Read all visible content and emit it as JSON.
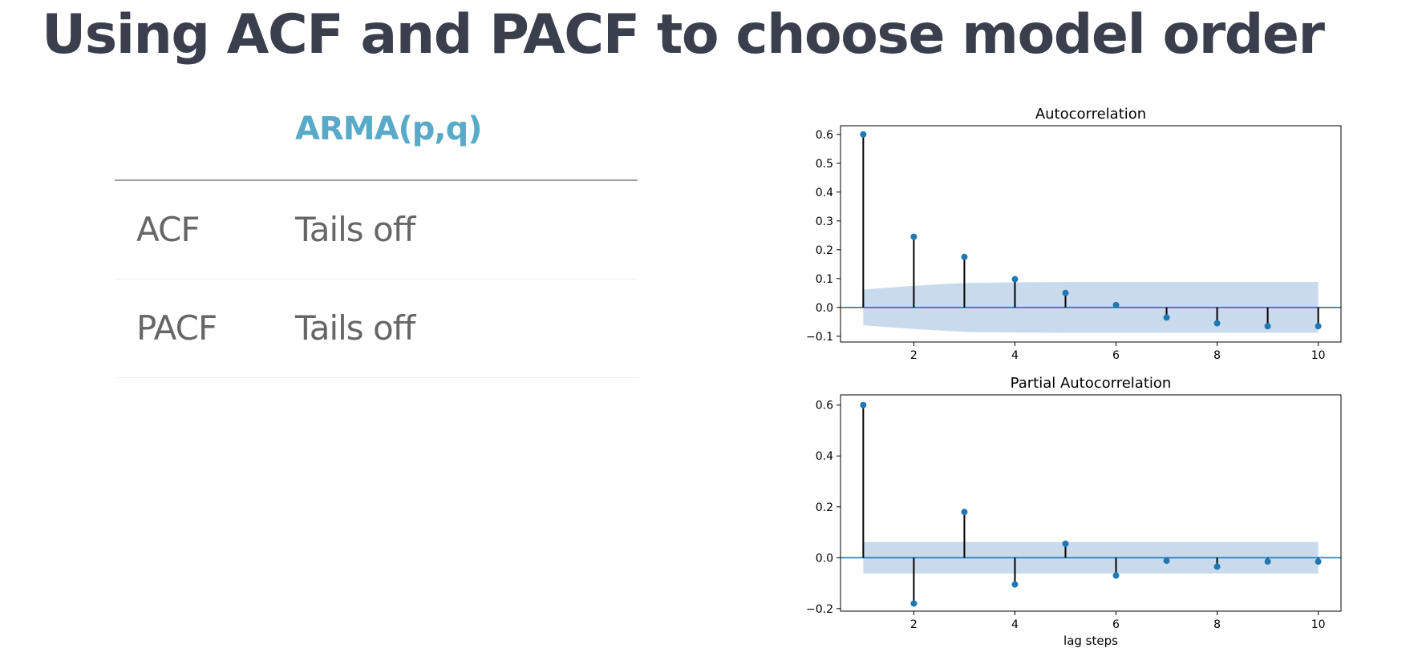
{
  "slide": {
    "title": "Using ACF and PACF to choose model order"
  },
  "table": {
    "header": "ARMA(p,q)",
    "rows": [
      {
        "label": "ACF",
        "value": "Tails off"
      },
      {
        "label": "PACF",
        "value": "Tails off"
      }
    ]
  },
  "colors": {
    "title": "#3b3f4d",
    "header_accent": "#59a9c8",
    "body_text": "#666666",
    "marker": "#1f77b4",
    "stem": "#000000",
    "confidence_band": "#b0cbe2",
    "zero_line": "#1f77b4"
  },
  "chart_data": [
    {
      "type": "stem",
      "title": "Autocorrelation",
      "xlabel": "",
      "ylabel": "",
      "x": [
        1,
        2,
        3,
        4,
        5,
        6,
        7,
        8,
        9,
        10
      ],
      "values": [
        0.6,
        0.245,
        0.175,
        0.098,
        0.05,
        0.008,
        -0.035,
        -0.055,
        -0.065,
        -0.065
      ],
      "confidence_band": {
        "x": [
          1,
          2,
          3,
          4,
          5,
          6,
          7,
          8,
          9,
          10
        ],
        "upper": [
          0.062,
          0.075,
          0.085,
          0.087,
          0.088,
          0.088,
          0.088,
          0.088,
          0.088,
          0.088
        ],
        "lower": [
          -0.062,
          -0.075,
          -0.085,
          -0.087,
          -0.088,
          -0.088,
          -0.088,
          -0.088,
          -0.088,
          -0.088
        ]
      },
      "xlim": [
        0.55,
        10.45
      ],
      "ylim": [
        -0.12,
        0.63
      ],
      "xticks": [
        2,
        4,
        6,
        8,
        10
      ],
      "yticks": [
        -0.1,
        0.0,
        0.1,
        0.2,
        0.3,
        0.4,
        0.5,
        0.6
      ],
      "ytick_labels": [
        "−0.1",
        "0.0",
        "0.1",
        "0.2",
        "0.3",
        "0.4",
        "0.5",
        "0.6"
      ],
      "grid": false,
      "legend": "none"
    },
    {
      "type": "stem",
      "title": "Partial Autocorrelation",
      "xlabel": "lag steps",
      "ylabel": "",
      "x": [
        1,
        2,
        3,
        4,
        5,
        6,
        7,
        8,
        9,
        10
      ],
      "values": [
        0.6,
        -0.18,
        0.18,
        -0.105,
        0.055,
        -0.07,
        -0.012,
        -0.035,
        -0.015,
        -0.015
      ],
      "confidence_band": {
        "x": [
          1,
          2,
          3,
          4,
          5,
          6,
          7,
          8,
          9,
          10
        ],
        "upper": [
          0.062,
          0.062,
          0.062,
          0.062,
          0.062,
          0.062,
          0.062,
          0.062,
          0.062,
          0.062
        ],
        "lower": [
          -0.062,
          -0.062,
          -0.062,
          -0.062,
          -0.062,
          -0.062,
          -0.062,
          -0.062,
          -0.062,
          -0.062
        ]
      },
      "xlim": [
        0.55,
        10.45
      ],
      "ylim": [
        -0.21,
        0.64
      ],
      "xticks": [
        2,
        4,
        6,
        8,
        10
      ],
      "yticks": [
        -0.2,
        0.0,
        0.2,
        0.4,
        0.6
      ],
      "ytick_labels": [
        "−0.2",
        "0.0",
        "0.2",
        "0.4",
        "0.6"
      ],
      "grid": false,
      "legend": "none"
    }
  ]
}
